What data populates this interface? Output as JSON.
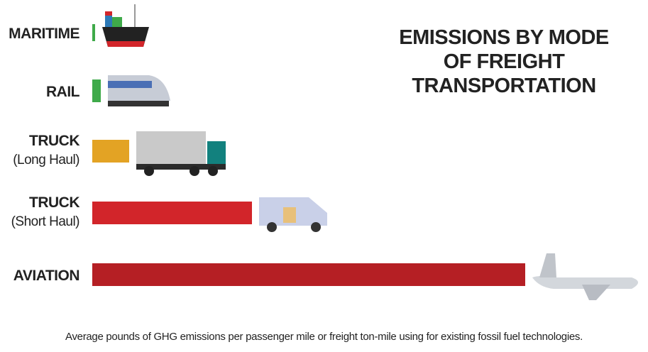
{
  "chart_data": {
    "type": "hbar",
    "title": "EMISSIONS BY MODE OF FREIGHT TRANSPORTATION",
    "categories": [
      "MARITIME",
      "RAIL",
      "TRUCK",
      "TRUCK",
      "AVIATION"
    ],
    "sublabels": [
      null,
      null,
      "(Long Haul)",
      "(Short Haul)",
      null
    ],
    "values": [
      4,
      12,
      52,
      225,
      610
    ],
    "colors": [
      "#3faa4a",
      "#3faa4a",
      "#e3a324",
      "#d2252a",
      "#b51f24"
    ],
    "xlim": [
      0,
      610
    ],
    "note": "Average pounds of GHG emissions per passenger mile or freight ton-mile using for existing fossil fuel technologies."
  }
}
